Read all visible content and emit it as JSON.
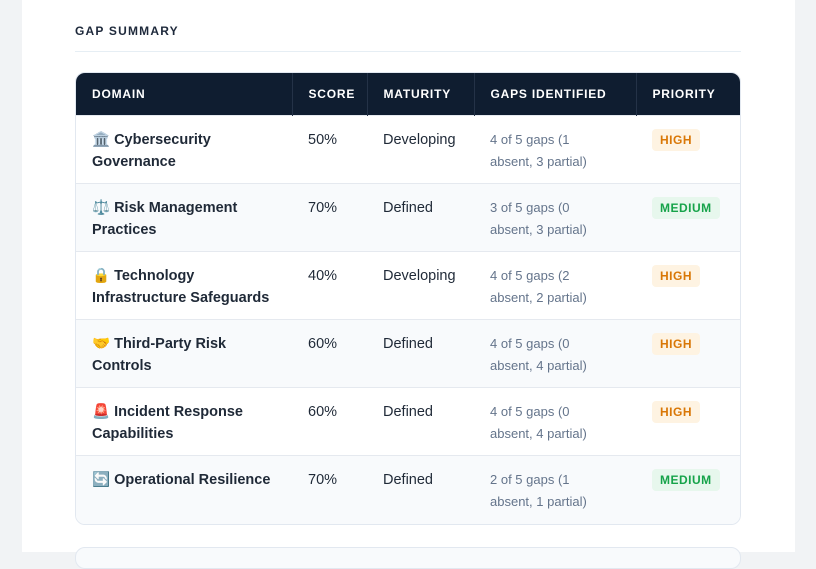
{
  "section_title": "GAP SUMMARY",
  "table": {
    "headers": [
      "DOMAIN",
      "SCORE",
      "MATURITY",
      "GAPS IDENTIFIED",
      "PRIORITY"
    ],
    "rows": [
      {
        "domain": "🏛️ Cybersecurity Governance",
        "score": "50%",
        "maturity": "Developing",
        "gaps": "4 of 5 gaps (1 absent, 3 partial)",
        "priority": "HIGH",
        "priority_color": "#d97706",
        "priority_bg": "#fef3e2"
      },
      {
        "domain": "⚖️ Risk Management Practices",
        "score": "70%",
        "maturity": "Defined",
        "gaps": "3 of 5 gaps (0 absent, 3 partial)",
        "priority": "MEDIUM",
        "priority_color": "#16a34a",
        "priority_bg": "#e7f7ed"
      },
      {
        "domain": "🔒 Technology Infrastructure Safeguards",
        "score": "40%",
        "maturity": "Developing",
        "gaps": "4 of 5 gaps (2 absent, 2 partial)",
        "priority": "HIGH",
        "priority_color": "#d97706",
        "priority_bg": "#fef3e2"
      },
      {
        "domain": "🤝 Third-Party Risk Controls",
        "score": "60%",
        "maturity": "Defined",
        "gaps": "4 of 5 gaps (0 absent, 4 partial)",
        "priority": "HIGH",
        "priority_color": "#d97706",
        "priority_bg": "#fef3e2"
      },
      {
        "domain": "🚨 Incident Response Capabilities",
        "score": "60%",
        "maturity": "Defined",
        "gaps": "4 of 5 gaps (0 absent, 4 partial)",
        "priority": "HIGH",
        "priority_color": "#d97706",
        "priority_bg": "#fef3e2"
      },
      {
        "domain": "🔄 Operational Resilience",
        "score": "70%",
        "maturity": "Defined",
        "gaps": "2 of 5 gaps (1 absent, 1 partial)",
        "priority": "MEDIUM",
        "priority_color": "#16a34a",
        "priority_bg": "#e7f7ed"
      }
    ]
  }
}
